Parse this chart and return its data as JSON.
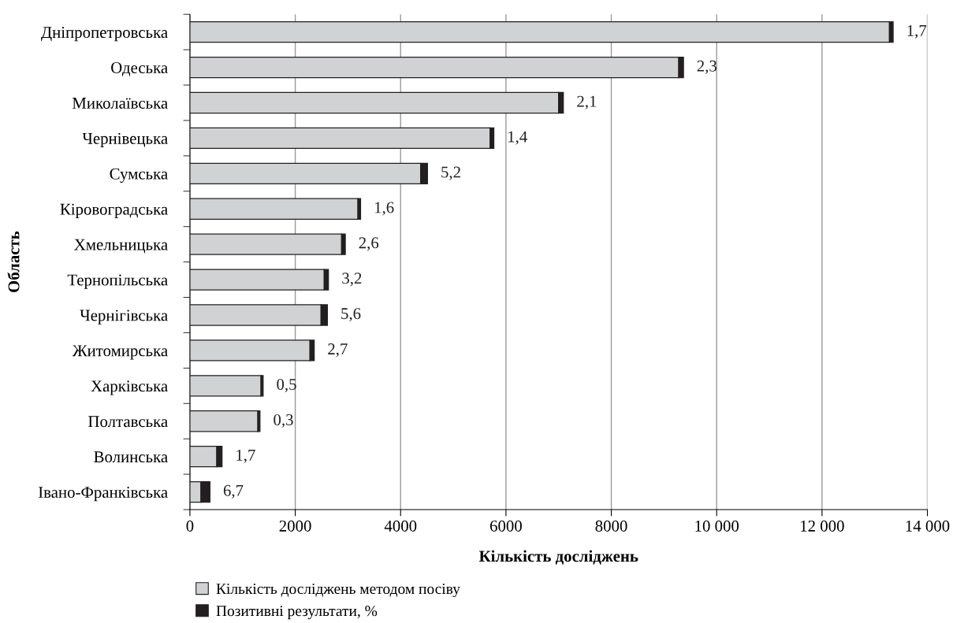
{
  "chart_data": {
    "type": "bar",
    "orientation": "horizontal",
    "stacked": true,
    "xlabel": "Кількість досліджень",
    "ylabel": "Область",
    "categories": [
      "Дніпропетровська",
      "Одеська",
      "Миколаївська",
      "Чернівецька",
      "Сумська",
      "Кіровоградська",
      "Хмельницька",
      "Тернопільська",
      "Чернігівська",
      "Житомирська",
      "Харківська",
      "Полтавська",
      "Волинська",
      "Івано-Франківська"
    ],
    "series": [
      {
        "name": "Кількість досліджень методом посіву",
        "color": "#d1d2d4",
        "values": [
          13280,
          9280,
          7000,
          5700,
          4380,
          3190,
          2880,
          2550,
          2490,
          2280,
          1350,
          1290,
          510,
          210
        ]
      },
      {
        "name": "Позитивні результати, %",
        "color": "#231f20",
        "values": [
          70,
          90,
          90,
          70,
          130,
          50,
          70,
          80,
          120,
          80,
          40,
          40,
          100,
          170
        ]
      }
    ],
    "annotations": [
      {
        "text": "1,7",
        "x": 13350,
        "y": "Дніпропетровська"
      },
      {
        "text": "2,3",
        "x": 9370,
        "y": "Одеська"
      },
      {
        "text": "2,1",
        "x": 7090,
        "y": "Миколаївська"
      },
      {
        "text": "1,4",
        "x": 5770,
        "y": "Чернівецька"
      },
      {
        "text": "5,2",
        "x": 4510,
        "y": "Сумська"
      },
      {
        "text": "1,6",
        "x": 3240,
        "y": "Кіровоградська"
      },
      {
        "text": "2,6",
        "x": 2950,
        "y": "Хмельницька"
      },
      {
        "text": "3,2",
        "x": 2630,
        "y": "Тернопільська"
      },
      {
        "text": "5,6",
        "x": 2610,
        "y": "Чернігівська"
      },
      {
        "text": "2,7",
        "x": 2360,
        "y": "Житомирська"
      },
      {
        "text": "0,5",
        "x": 1390,
        "y": "Харківська"
      },
      {
        "text": "0,3",
        "x": 1330,
        "y": "Полтавська"
      },
      {
        "text": "1,7",
        "x": 610,
        "y": "Волинська"
      },
      {
        "text": "6,7",
        "x": 380,
        "y": "Івано-Франківська"
      }
    ],
    "xlim": [
      0,
      14000
    ],
    "xticks": [
      0,
      2000,
      4000,
      6000,
      8000,
      {
        "value": 10000,
        "label": "10 000"
      },
      {
        "value": 12000,
        "label": "12 000"
      },
      {
        "value": 14000,
        "label": "14 000"
      }
    ],
    "grid": "x",
    "legend": "bottom"
  }
}
